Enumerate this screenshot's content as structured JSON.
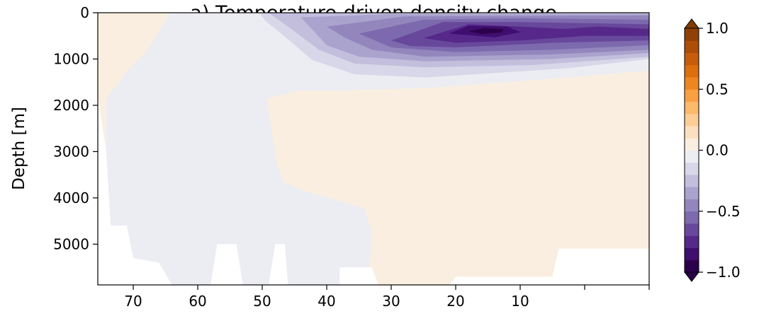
{
  "chart_data": {
    "type": "contourf",
    "title": "a) Temperature-driven density change",
    "ylabel": "Depth [m]",
    "xlim": [
      75.5,
      -10
    ],
    "ylim": [
      0,
      5880
    ],
    "y_inverted": true,
    "xticks": [
      70,
      60,
      50,
      40,
      30,
      20,
      10
    ],
    "xticks_unlabeled": [
      0,
      -10
    ],
    "yticks": [
      0,
      1000,
      2000,
      3000,
      4000,
      5000
    ],
    "colorbar": {
      "lim": [
        -1,
        1
      ],
      "step": 0.1,
      "extend": "both",
      "colors": [
        "#2d004b",
        "#3f0e6e",
        "#55288a",
        "#68489b",
        "#7d6aae",
        "#9386bd",
        "#aaa3cd",
        "#c2bedc",
        "#d8d7e9",
        "#ecedf3",
        "#faeee0",
        "#fbdfbe",
        "#fdcd97",
        "#fdb96c",
        "#f9a042",
        "#ee8620",
        "#dd6f0f",
        "#c75c0a",
        "#ac4d08",
        "#8f4108"
      ],
      "under_color": "#2a0047",
      "over_color": "#7f3b08",
      "ticks": [
        {
          "value": 1,
          "label": "1.0"
        },
        {
          "value": 0.5,
          "label": "0.5"
        },
        {
          "value": 0,
          "label": "0.0"
        },
        {
          "value": -0.5,
          "label": "−0.5"
        },
        {
          "value": -1,
          "label": "−1.0"
        }
      ]
    },
    "background_level": 0.05,
    "regions": [
      {
        "level": -0.05,
        "points": [
          [
            64.3,
            0
          ],
          [
            -10,
            0
          ],
          [
            -10,
            1250
          ],
          [
            2.7,
            1400
          ],
          [
            24.7,
            1630
          ],
          [
            37.9,
            1680
          ],
          [
            44.5,
            1680
          ],
          [
            49.3,
            1860
          ],
          [
            47.8,
            3240
          ],
          [
            46.7,
            3660
          ],
          [
            43.4,
            3850
          ],
          [
            34.1,
            4230
          ],
          [
            33.0,
            4760
          ],
          [
            33.5,
            5880
          ],
          [
            74.2,
            5880
          ],
          [
            74.2,
            1860
          ],
          [
            70.9,
            1250
          ],
          [
            68.1,
            870
          ]
        ]
      },
      {
        "level": -0.15,
        "points": [
          [
            50.5,
            0
          ],
          [
            -10,
            0
          ],
          [
            -10,
            1000
          ],
          [
            2.7,
            1200
          ],
          [
            24.7,
            1400
          ],
          [
            35.7,
            1330
          ],
          [
            42.3,
            1020
          ],
          [
            46.7,
            490
          ],
          [
            49.5,
            180
          ]
        ]
      },
      {
        "level": -0.25,
        "points": [
          [
            49,
            0
          ],
          [
            -10,
            0
          ],
          [
            -10,
            950
          ],
          [
            8,
            1130
          ],
          [
            24.7,
            1180
          ],
          [
            35.7,
            1100
          ],
          [
            41.2,
            800
          ],
          [
            45.6,
            340
          ]
        ]
      },
      {
        "level": -0.35,
        "points": [
          [
            44,
            100
          ],
          [
            30,
            30
          ],
          [
            -10,
            30
          ],
          [
            -10,
            870
          ],
          [
            5,
            1000
          ],
          [
            24.7,
            1050
          ],
          [
            35,
            950
          ],
          [
            40,
            700
          ]
        ]
      },
      {
        "level": -0.45,
        "points": [
          [
            40,
            300
          ],
          [
            28,
            80
          ],
          [
            -10,
            60
          ],
          [
            -10,
            800
          ],
          [
            5,
            900
          ],
          [
            24.7,
            950
          ],
          [
            33,
            800
          ],
          [
            37,
            550
          ]
        ]
      },
      {
        "level": -0.55,
        "points": [
          [
            35,
            450
          ],
          [
            25,
            150
          ],
          [
            10,
            120
          ],
          [
            -10,
            150
          ],
          [
            -10,
            700
          ],
          [
            5,
            800
          ],
          [
            20,
            850
          ],
          [
            30,
            750
          ]
        ]
      },
      {
        "level": -0.65,
        "points": [
          [
            30,
            600
          ],
          [
            22,
            200
          ],
          [
            10,
            200
          ],
          [
            -10,
            250
          ],
          [
            -10,
            600
          ],
          [
            5,
            650
          ],
          [
            20,
            750
          ],
          [
            27,
            720
          ]
        ]
      },
      {
        "level": -0.75,
        "points": [
          [
            25,
            550
          ],
          [
            18,
            250
          ],
          [
            10,
            300
          ],
          [
            3,
            350
          ],
          [
            -2,
            300
          ],
          [
            -10,
            350
          ],
          [
            -10,
            500
          ],
          [
            0,
            500
          ],
          [
            10,
            600
          ],
          [
            20,
            650
          ]
        ]
      },
      {
        "level": -0.85,
        "points": [
          [
            21,
            450
          ],
          [
            18,
            280
          ],
          [
            12,
            300
          ],
          [
            10,
            420
          ],
          [
            14,
            530
          ]
        ]
      },
      {
        "level": -0.95,
        "points": [
          [
            18,
            400
          ],
          [
            15.5,
            330
          ],
          [
            12.5,
            360
          ],
          [
            13,
            430
          ],
          [
            16,
            460
          ]
        ]
      }
    ],
    "bathymetry": [
      [
        75.5,
        1800
      ],
      [
        74.2,
        3000
      ],
      [
        73.5,
        4600
      ],
      [
        71,
        4600
      ],
      [
        70,
        5300
      ],
      [
        66,
        5400
      ],
      [
        64,
        5880
      ],
      [
        58,
        5880
      ],
      [
        57,
        5000
      ],
      [
        54,
        5000
      ],
      [
        53,
        5880
      ],
      [
        49,
        5880
      ],
      [
        48,
        5000
      ],
      [
        46.5,
        5000
      ],
      [
        46,
        5880
      ],
      [
        38,
        5880
      ],
      [
        38,
        5500
      ],
      [
        33,
        5500
      ],
      [
        32,
        5880
      ],
      [
        21,
        5880
      ],
      [
        20,
        5700
      ],
      [
        5,
        5700
      ],
      [
        4,
        5100
      ],
      [
        -10,
        5100
      ]
    ]
  }
}
